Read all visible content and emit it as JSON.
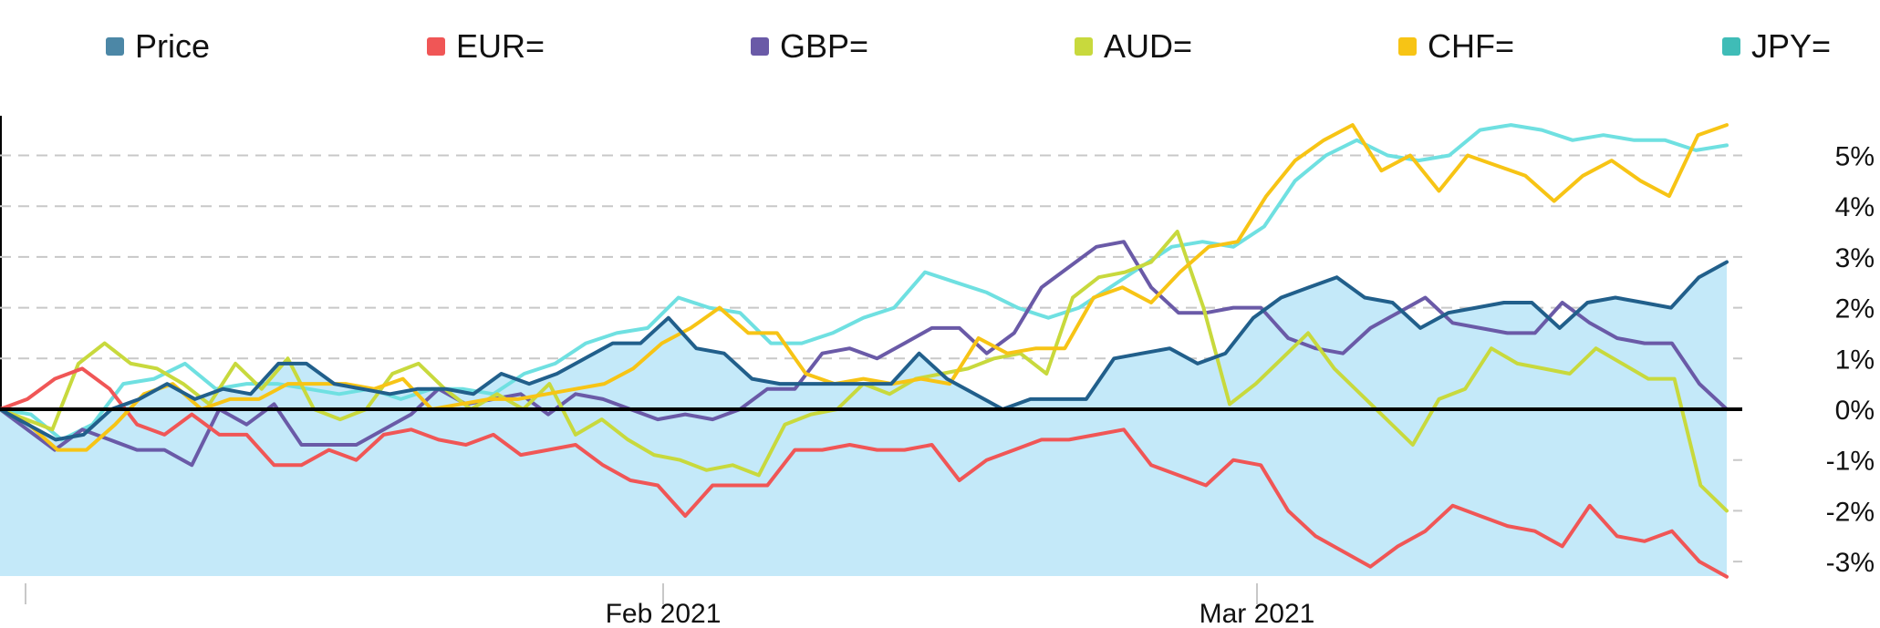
{
  "colors": {
    "Price": "#215f8b",
    "Price_legend": "#4c87a6",
    "EUR=": "#f05656",
    "GBP=": "#6a5aa7",
    "AUD=": "#c8d93d",
    "CHF=": "#f7c415",
    "JPY=": "#6fe0e1",
    "JPY=_legend": "#3fbcb7",
    "area": "#c4e9f9",
    "zero": "#000000",
    "grid": "#c8c8c8"
  },
  "chart_data": {
    "type": "line",
    "x_labels": [
      "Feb 2021",
      "Mar 2021"
    ],
    "y_ticks": [
      "5%",
      "4%",
      "3%",
      "2%",
      "1%",
      "0%",
      "-1%",
      "-2%",
      "-3%"
    ],
    "y_tick_values": [
      5,
      4,
      3,
      2,
      1,
      0,
      -1,
      -2,
      -3
    ],
    "ylim": [
      -3.3,
      5.8
    ],
    "grid": true,
    "legend_position": "top",
    "area_series": "Price",
    "series": [
      {
        "name": "Price",
        "values": [
          0,
          -0.3,
          -0.6,
          -0.5,
          0,
          0.2,
          0.5,
          0.2,
          0.4,
          0.3,
          0.9,
          0.9,
          0.5,
          0.4,
          0.3,
          0.4,
          0.4,
          0.3,
          0.7,
          0.5,
          0.7,
          1.0,
          1.3,
          1.3,
          1.8,
          1.2,
          1.1,
          0.6,
          0.5,
          0.5,
          0.5,
          0.5,
          0.5,
          1.1,
          0.6,
          0.3,
          0.0,
          0.2,
          0.2,
          0.2,
          1.0,
          1.1,
          1.2,
          0.9,
          1.1,
          1.8,
          2.2,
          2.4,
          2.6,
          2.2,
          2.1,
          1.6,
          1.9,
          2.0,
          2.1,
          2.1,
          1.6,
          2.1,
          2.2,
          2.1,
          2.0,
          2.6,
          2.9
        ]
      },
      {
        "name": "EUR=",
        "values": [
          0,
          0.2,
          0.6,
          0.8,
          0.4,
          -0.3,
          -0.5,
          -0.1,
          -0.5,
          -0.5,
          -1.1,
          -1.1,
          -0.8,
          -1.0,
          -0.5,
          -0.4,
          -0.6,
          -0.7,
          -0.5,
          -0.9,
          -0.8,
          -0.7,
          -1.1,
          -1.4,
          -1.5,
          -2.1,
          -1.5,
          -1.5,
          -1.5,
          -0.8,
          -0.8,
          -0.7,
          -0.8,
          -0.8,
          -0.7,
          -1.4,
          -1.0,
          -0.8,
          -0.6,
          -0.6,
          -0.5,
          -0.4,
          -1.1,
          -1.3,
          -1.5,
          -1.0,
          -1.1,
          -2.0,
          -2.5,
          -2.8,
          -3.1,
          -2.7,
          -2.4,
          -1.9,
          -2.1,
          -2.3,
          -2.4,
          -2.7,
          -1.9,
          -2.5,
          -2.6,
          -2.4,
          -3.0,
          -3.3
        ]
      },
      {
        "name": "GBP=",
        "values": [
          0,
          -0.4,
          -0.8,
          -0.4,
          -0.6,
          -0.8,
          -0.8,
          -1.1,
          0,
          -0.3,
          0.1,
          -0.7,
          -0.7,
          -0.7,
          -0.4,
          -0.1,
          0.4,
          0.1,
          0.2,
          0.3,
          -0.1,
          0.3,
          0.2,
          0.0,
          -0.2,
          -0.1,
          -0.2,
          0.0,
          0.4,
          0.4,
          1.1,
          1.2,
          1.0,
          1.3,
          1.6,
          1.6,
          1.1,
          1.5,
          2.4,
          2.8,
          3.2,
          3.3,
          2.4,
          1.9,
          1.9,
          2.0,
          2.0,
          1.4,
          1.2,
          1.1,
          1.6,
          1.9,
          2.2,
          1.7,
          1.6,
          1.5,
          1.5,
          2.1,
          1.7,
          1.4,
          1.3,
          1.3,
          0.5,
          0.0
        ]
      },
      {
        "name": "AUD=",
        "values": [
          0,
          -0.2,
          -0.4,
          0.9,
          1.3,
          0.9,
          0.8,
          0.5,
          0.1,
          0.9,
          0.4,
          1.0,
          0.0,
          -0.2,
          0.0,
          0.7,
          0.9,
          0.4,
          0.0,
          0.3,
          0.0,
          0.5,
          -0.5,
          -0.2,
          -0.6,
          -0.9,
          -1.0,
          -1.2,
          -1.1,
          -1.3,
          -0.3,
          -0.1,
          0.0,
          0.5,
          0.3,
          0.6,
          0.7,
          0.8,
          1.0,
          1.1,
          0.7,
          2.2,
          2.6,
          2.7,
          2.9,
          3.5,
          2.0,
          0.1,
          0.5,
          1.0,
          1.5,
          0.8,
          0.3,
          -0.2,
          -0.7,
          0.2,
          0.4,
          1.2,
          0.9,
          0.8,
          0.7,
          1.2,
          0.9,
          0.6,
          0.6,
          -1.5,
          -2.0
        ]
      },
      {
        "name": "CHF=",
        "values": [
          0,
          -0.3,
          -0.8,
          -0.8,
          -0.3,
          0.3,
          0.5,
          0.0,
          0.2,
          0.2,
          0.5,
          0.5,
          0.5,
          0.4,
          0.6,
          0.0,
          0.1,
          0.2,
          0.2,
          0.3,
          0.4,
          0.5,
          0.8,
          1.3,
          1.6,
          2.0,
          1.5,
          1.5,
          0.7,
          0.5,
          0.6,
          0.5,
          0.6,
          0.5,
          1.4,
          1.1,
          1.2,
          1.2,
          2.2,
          2.4,
          2.1,
          2.7,
          3.2,
          3.3,
          4.2,
          4.9,
          5.3,
          5.6,
          4.7,
          5.0,
          4.3,
          5.0,
          4.8,
          4.6,
          4.1,
          4.6,
          4.9,
          4.5,
          4.2,
          5.4,
          5.6
        ]
      },
      {
        "name": "JPY=",
        "values": [
          0,
          -0.1,
          -0.6,
          -0.3,
          0.5,
          0.6,
          0.9,
          0.4,
          0.5,
          0.5,
          0.4,
          0.3,
          0.4,
          0.2,
          0.4,
          0.4,
          0.3,
          0.7,
          0.9,
          1.3,
          1.5,
          1.6,
          2.2,
          2.0,
          1.9,
          1.3,
          1.3,
          1.5,
          1.8,
          2.0,
          2.7,
          2.5,
          2.3,
          2.0,
          1.8,
          2.0,
          2.4,
          2.8,
          3.2,
          3.3,
          3.2,
          3.6,
          4.5,
          5.0,
          5.3,
          5.0,
          4.9,
          5.0,
          5.5,
          5.6,
          5.5,
          5.3,
          5.4,
          5.3,
          5.3,
          5.1,
          5.2
        ]
      }
    ]
  }
}
